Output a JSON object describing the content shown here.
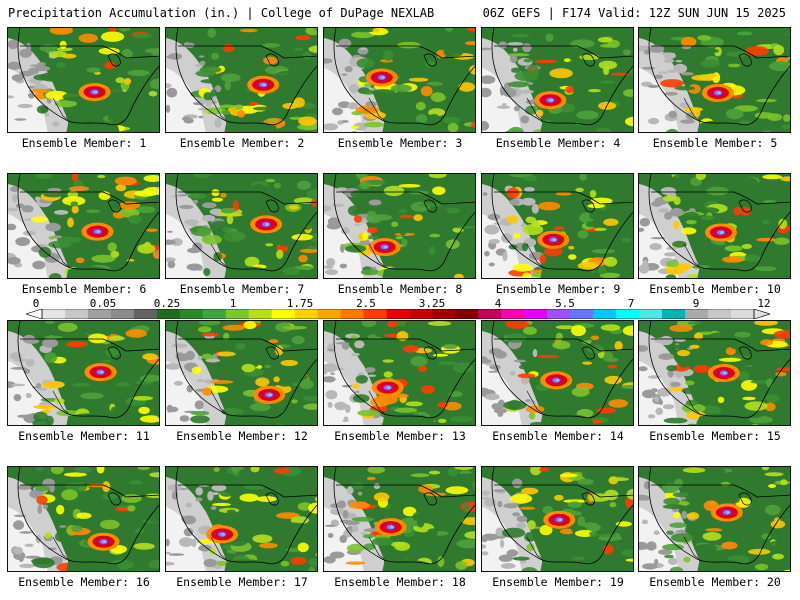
{
  "header": {
    "left": "Precipitation Accumulation (in.) | College of DuPage NEXLAB",
    "right": "06Z GEFS | F174 Valid: 12Z SUN JUN 15 2025"
  },
  "members": [
    {
      "label": "Ensemble Member: 1"
    },
    {
      "label": "Ensemble Member: 2"
    },
    {
      "label": "Ensemble Member: 3"
    },
    {
      "label": "Ensemble Member: 4"
    },
    {
      "label": "Ensemble Member: 5"
    },
    {
      "label": "Ensemble Member: 6"
    },
    {
      "label": "Ensemble Member: 7"
    },
    {
      "label": "Ensemble Member: 8"
    },
    {
      "label": "Ensemble Member: 9"
    },
    {
      "label": "Ensemble Member: 10"
    },
    {
      "label": "Ensemble Member: 11"
    },
    {
      "label": "Ensemble Member: 12"
    },
    {
      "label": "Ensemble Member: 13"
    },
    {
      "label": "Ensemble Member: 14"
    },
    {
      "label": "Ensemble Member: 15"
    },
    {
      "label": "Ensemble Member: 16"
    },
    {
      "label": "Ensemble Member: 17"
    },
    {
      "label": "Ensemble Member: 18"
    },
    {
      "label": "Ensemble Member: 19"
    },
    {
      "label": "Ensemble Member: 20"
    }
  ],
  "colorbar": {
    "tick_labels": [
      "0",
      "0.05",
      "0.25",
      "1",
      "1.75",
      "2.5",
      "3.25",
      "4",
      "5.5",
      "7",
      "9",
      "12"
    ],
    "colors": [
      "#e6e6e6",
      "#c8c8c8",
      "#a0a0a0",
      "#8c8c8c",
      "#646464",
      "#1e6e1e",
      "#2a8a2a",
      "#3ca63c",
      "#78c828",
      "#b4e01e",
      "#ffff00",
      "#ffd200",
      "#ffa500",
      "#ff7800",
      "#ff3c00",
      "#e60000",
      "#c80000",
      "#a00000",
      "#820000",
      "#c8005a",
      "#ff00b4",
      "#e600ff",
      "#a050ff",
      "#6478ff",
      "#00c8ff",
      "#00ffff",
      "#50e6e6",
      "#00b4b4",
      "#aaaaaa",
      "#c8c8c8",
      "#dcdcdc"
    ]
  }
}
